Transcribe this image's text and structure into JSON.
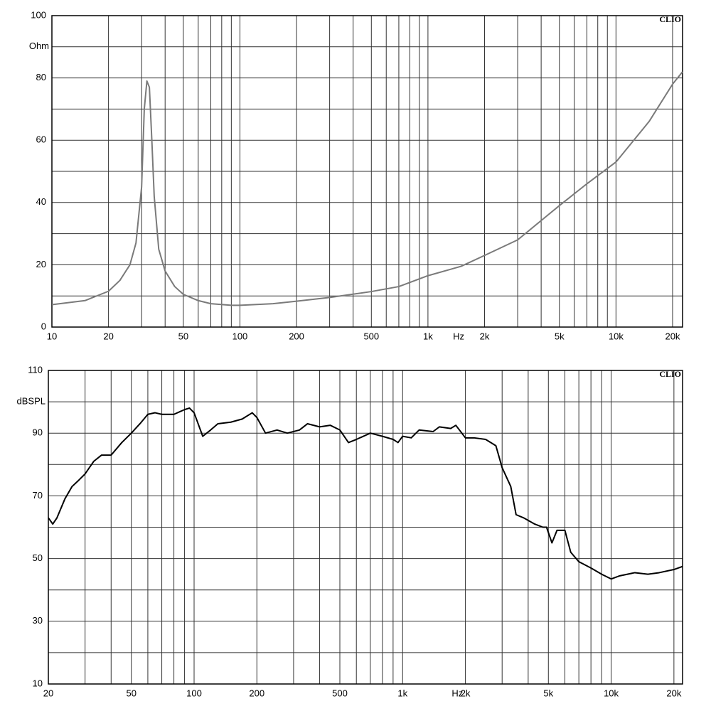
{
  "chart_data": [
    {
      "type": "line",
      "watermark": "CLIO",
      "x_label": "Hz",
      "y_label": "Ohm",
      "log_x": true,
      "color": "#7a7a7a",
      "grid": true,
      "xlim": [
        10,
        22600
      ],
      "ylim": [
        0,
        100
      ],
      "xticks": [
        10,
        20,
        50,
        100,
        200,
        500,
        {
          "value": 1000,
          "label": "1k"
        },
        {
          "value": 2000,
          "label": "2k"
        },
        {
          "value": 5000,
          "label": "5k"
        },
        {
          "value": 10000,
          "label": "10k"
        },
        {
          "value": 20000,
          "label": "20k"
        }
      ],
      "xminor": [
        30,
        40,
        60,
        70,
        80,
        90,
        300,
        400,
        600,
        700,
        800,
        900,
        3000,
        4000,
        6000,
        7000,
        8000,
        9000
      ],
      "yticks": [
        0,
        20,
        40,
        60,
        80,
        100
      ],
      "yminor": [
        10,
        30,
        50,
        70,
        90
      ],
      "x": [
        10,
        15,
        20,
        23,
        26,
        28,
        30,
        31,
        32,
        33,
        34,
        35,
        37,
        40,
        45,
        50,
        60,
        70,
        90,
        100,
        150,
        200,
        300,
        500,
        700,
        1000,
        1500,
        2000,
        3000,
        5000,
        7000,
        10000,
        15000,
        20000,
        22600
      ],
      "values": [
        7.2,
        8.5,
        11.5,
        15,
        20,
        27,
        45,
        70,
        79,
        77,
        60,
        42,
        25,
        18,
        13,
        10.5,
        8.5,
        7.5,
        7,
        7,
        7.5,
        8.3,
        9.5,
        11.4,
        13,
        16.5,
        19.5,
        23,
        28,
        39,
        46,
        53,
        66,
        78,
        82
      ]
    },
    {
      "type": "line",
      "watermark": "CLIO",
      "x_label": "Hz",
      "y_label": "dBSPL",
      "log_x": true,
      "color": "#000000",
      "grid": true,
      "xlim": [
        20,
        22000
      ],
      "ylim": [
        10,
        110
      ],
      "xticks": [
        20,
        50,
        100,
        200,
        500,
        {
          "value": 1000,
          "label": "1k"
        },
        {
          "value": 2000,
          "label": "2k"
        },
        {
          "value": 5000,
          "label": "5k"
        },
        {
          "value": 10000,
          "label": "10k"
        },
        {
          "value": 20000,
          "label": "20k"
        }
      ],
      "xminor": [
        30,
        40,
        60,
        70,
        80,
        90,
        300,
        400,
        600,
        700,
        800,
        900,
        3000,
        4000,
        6000,
        7000,
        8000,
        9000
      ],
      "yticks": [
        10,
        30,
        50,
        70,
        90,
        110
      ],
      "yminor": [
        20,
        40,
        60,
        80,
        100
      ],
      "x": [
        20,
        21,
        22,
        24,
        26,
        28,
        30,
        33,
        36,
        40,
        45,
        50,
        55,
        60,
        65,
        70,
        80,
        90,
        95,
        100,
        110,
        120,
        130,
        150,
        170,
        190,
        200,
        220,
        250,
        280,
        320,
        350,
        400,
        450,
        500,
        550,
        600,
        700,
        800,
        900,
        950,
        1000,
        1100,
        1200,
        1400,
        1500,
        1700,
        1800,
        2000,
        2200,
        2500,
        2800,
        3000,
        3300,
        3500,
        3800,
        4300,
        4700,
        4900,
        5200,
        5500,
        6000,
        6400,
        7000,
        8000,
        9000,
        10000,
        11000,
        13000,
        15000,
        17000,
        20000,
        22000
      ],
      "values": [
        63,
        61,
        63,
        69,
        73,
        75,
        77,
        81,
        83,
        83,
        87,
        90,
        93,
        96,
        96.5,
        96,
        96,
        97.5,
        98,
        96.5,
        89,
        91,
        93,
        93.5,
        94.5,
        96.5,
        95,
        90,
        91,
        90,
        91,
        93,
        92,
        92.5,
        91,
        87,
        88,
        90,
        89,
        88,
        87,
        89,
        88.5,
        91,
        90.5,
        92,
        91.5,
        92.5,
        88.5,
        88.5,
        88,
        86,
        79,
        73,
        64,
        63,
        61,
        60,
        60,
        55,
        59,
        59,
        52,
        49,
        47,
        45,
        43.5,
        44.5,
        45.5,
        45,
        45.5,
        46.5,
        47.5
      ]
    }
  ]
}
